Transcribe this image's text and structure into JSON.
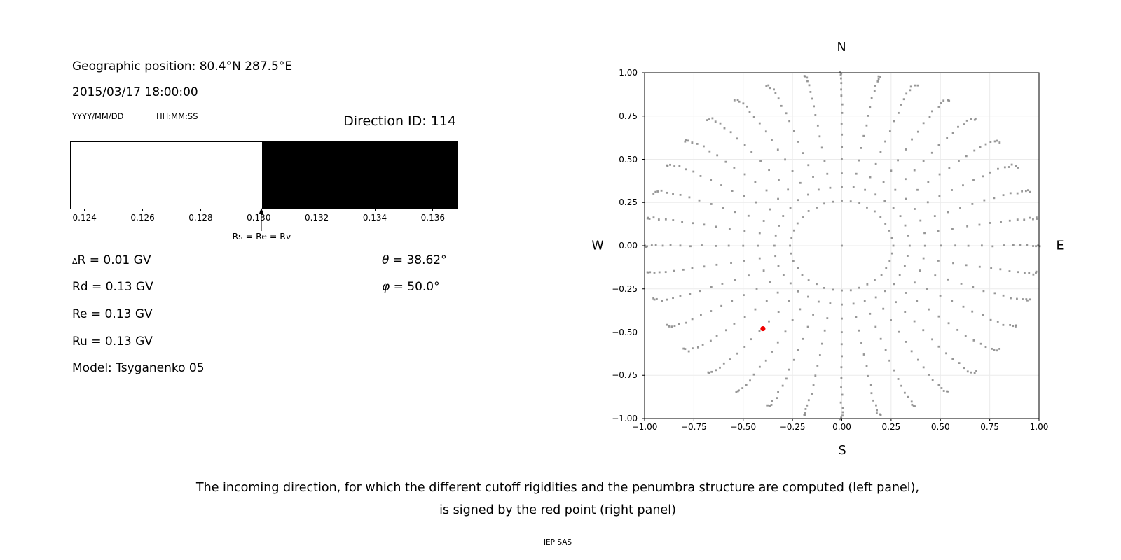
{
  "left_panel": {
    "geo_position": "Geographic position: 80.4°N 287.5°E",
    "datetime": "2015/03/17 18:00:00",
    "date_format_label": "YYYY/MM/DD",
    "time_format_label": "HH:MM:SS",
    "direction_id": "Direction ID: 114",
    "rigidity": {
      "delta_symbol": "Δ",
      "delta_line_rest": "R = 0.01 GV",
      "rd_line": "Rd = 0.13 GV",
      "re_line": "Re = 0.13 GV",
      "ru_line": "Ru = 0.13 GV",
      "model_line": "Model: Tsyganenko 05",
      "theta_symbol": "θ",
      "theta_rest": " = 38.62°",
      "phi_symbol": "φ",
      "phi_rest": " = 50.0°"
    }
  },
  "right_panel": {
    "compass": {
      "north": "N",
      "south": "S",
      "west": "W",
      "east": "E"
    }
  },
  "caption": {
    "line1": "The incoming direction, for which the different cutoff rigidities and the penumbra structure are computed (left panel),",
    "line2": "is signed by the red point (right panel)",
    "credit": "IEP SAS"
  },
  "chart_data": [
    {
      "type": "bar",
      "id": "penumbra-structure",
      "x_min": 0.1235,
      "x_max": 0.1368,
      "x_ticks": [
        0.124,
        0.126,
        0.128,
        0.13,
        0.132,
        0.134,
        0.136
      ],
      "segments": [
        {
          "from": 0.1235,
          "to": 0.1301,
          "color": "#ffffff"
        },
        {
          "from": 0.1301,
          "to": 0.1368,
          "color": "#000000"
        }
      ],
      "marker": {
        "value": 0.1301,
        "label": "Rs = Re = Rv"
      }
    },
    {
      "type": "scatter",
      "id": "incoming-direction-map",
      "xlim": [
        -1,
        1
      ],
      "ylim": [
        -1,
        1
      ],
      "x_ticks": [
        -1.0,
        -0.75,
        -0.5,
        -0.25,
        0.0,
        0.25,
        0.5,
        0.75,
        1.0
      ],
      "y_ticks": [
        -1.0,
        -0.75,
        -0.5,
        -0.25,
        0.0,
        0.25,
        0.5,
        0.75,
        1.0
      ],
      "grid": true,
      "grid_color": "#ebebeb",
      "compass_labels": {
        "top": "N",
        "bottom": "S",
        "left": "W",
        "right": "E"
      },
      "gray_grid_points": {
        "color": "#8c8c8c",
        "opacity": 0.9,
        "marker_px": 2.8,
        "azimuth_start_deg": 0,
        "azimuth_step_deg": 10,
        "azimuth_count": 36,
        "zenith_deg": [
          15,
          20,
          25,
          30,
          35,
          40,
          45,
          50,
          55,
          60,
          65,
          70,
          75,
          80,
          85,
          90
        ],
        "radius_rule": "sin(zenith)",
        "center_point": [
          0,
          0
        ],
        "tip_bend_max_deg": 3.2,
        "tip_bend_exponent": 3
      },
      "red_point": {
        "x": -0.4,
        "y": -0.48,
        "color": "#f00000",
        "radius_px": 3.6
      }
    }
  ]
}
